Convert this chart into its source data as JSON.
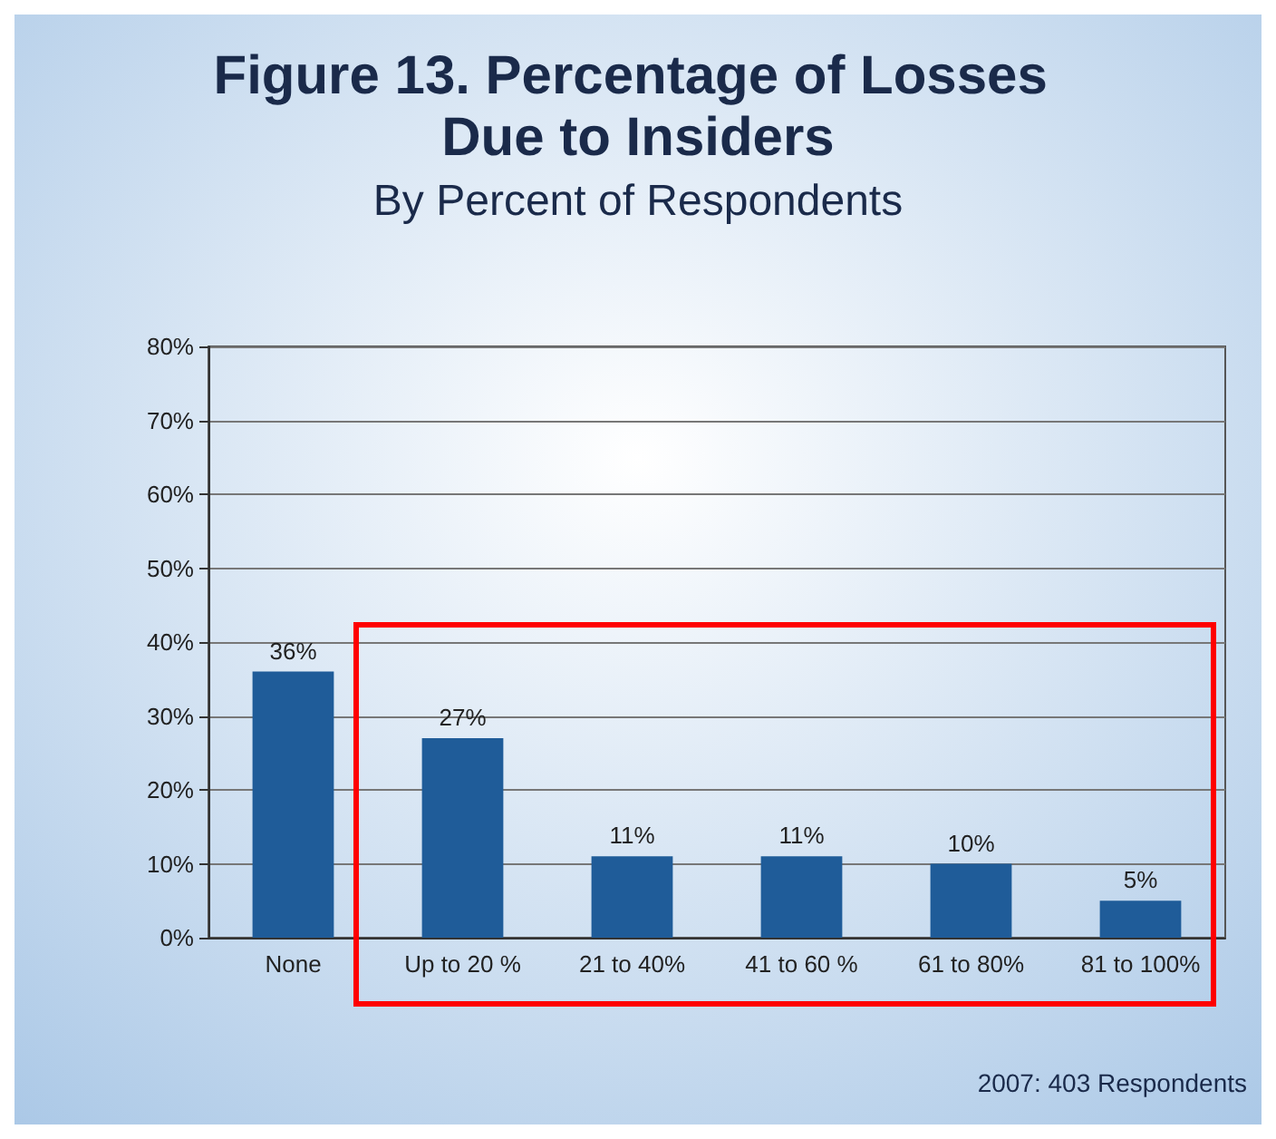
{
  "chart_data": {
    "type": "bar",
    "title": "Figure 13. Percentage of Losses Due to Insiders",
    "subtitle": "By Percent of Respondents",
    "categories": [
      "None",
      "Up to 20 %",
      "21 to 40%",
      "41 to 60 %",
      "61 to 80%",
      "81 to 100%"
    ],
    "values": [
      36,
      27,
      11,
      11,
      10,
      5
    ],
    "value_labels": [
      "36%",
      "27%",
      "11%",
      "11%",
      "10%",
      "5%"
    ],
    "color": "#1f5c99",
    "ylim": [
      0,
      80
    ],
    "yticks": [
      {
        "value": 0,
        "label": "0%"
      },
      {
        "value": 10,
        "label": "10%"
      },
      {
        "value": 20,
        "label": "20%"
      },
      {
        "value": 30,
        "label": "30%"
      },
      {
        "value": 40,
        "label": "40%"
      },
      {
        "value": 50,
        "label": "50%"
      },
      {
        "value": 60,
        "label": "60%"
      },
      {
        "value": 70,
        "label": "70%"
      },
      {
        "value": 80,
        "label": "80%"
      }
    ],
    "grid": "y",
    "annotations": [
      "2007: 403 Respondents"
    ]
  }
}
